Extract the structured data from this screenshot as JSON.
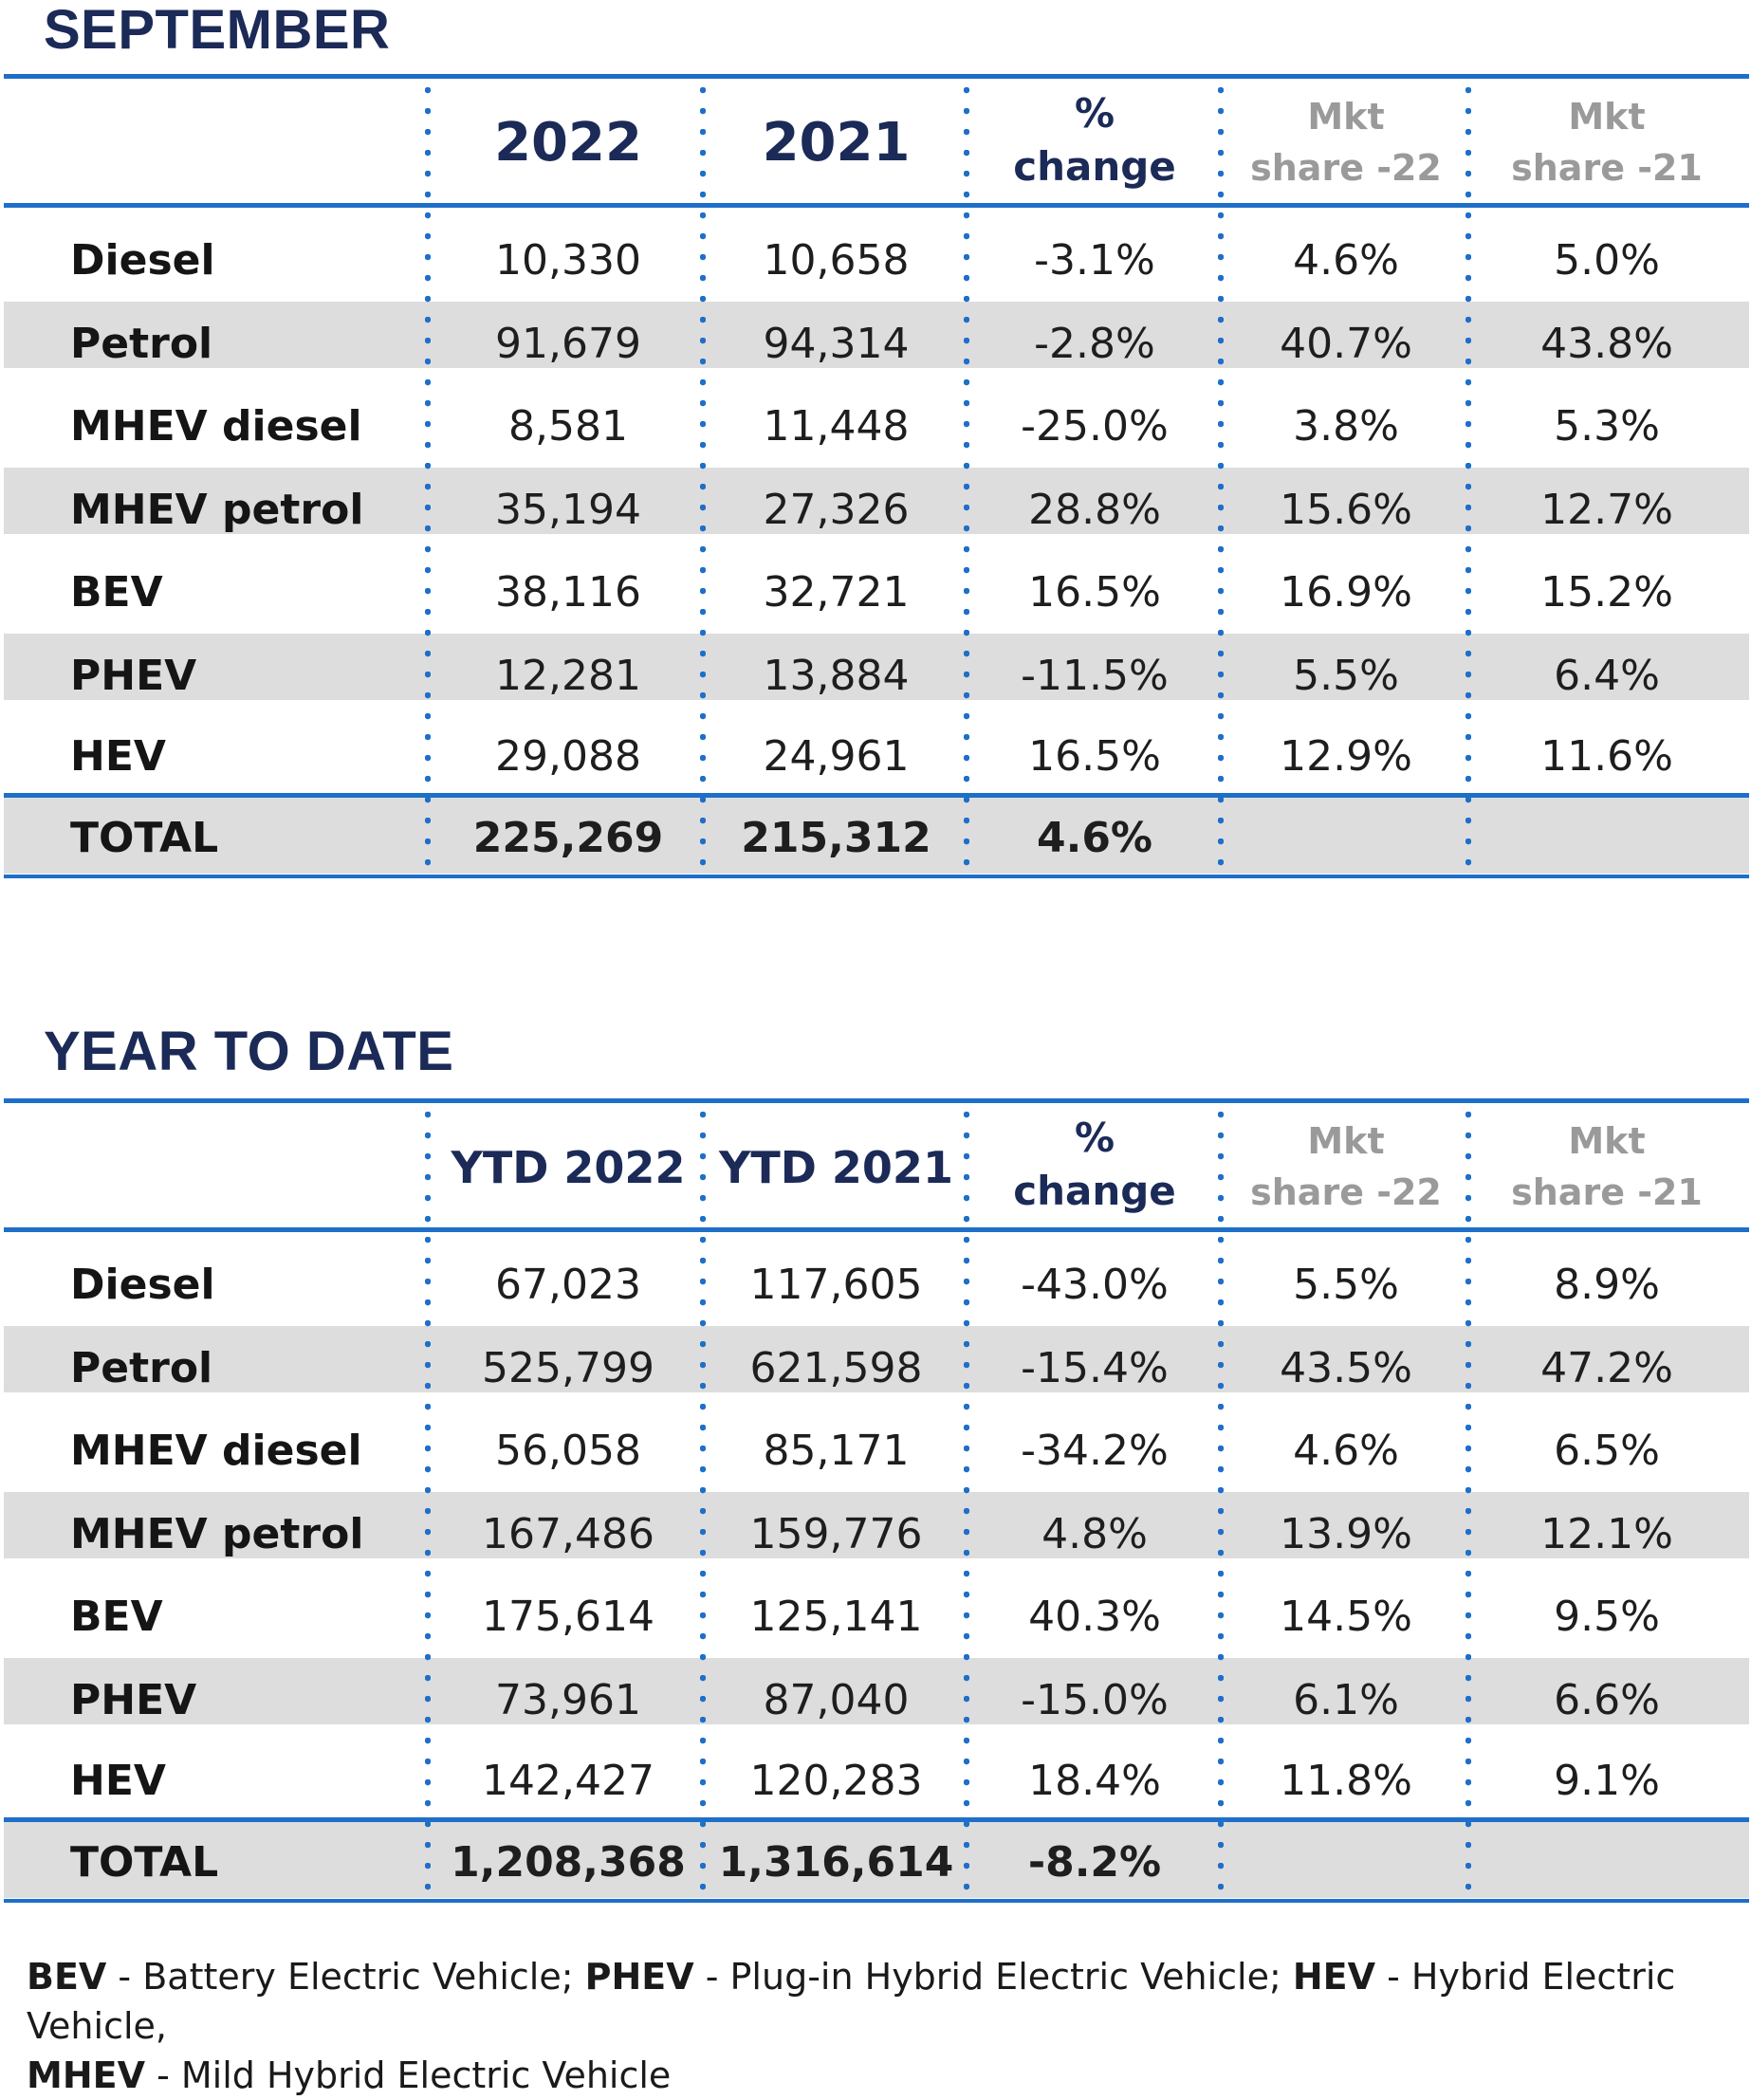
{
  "september": {
    "title": "SEPTEMBER",
    "headers": {
      "col1": "2022",
      "col2": "2021",
      "chg_line1": "%",
      "chg_line2": "change",
      "mkt22_line1": "Mkt",
      "mkt22_line2": "share -22",
      "mkt21_line1": "Mkt",
      "mkt21_line2": "share -21"
    },
    "rows": [
      {
        "label": "Diesel",
        "v2022": "10,330",
        "v2021": "10,658",
        "change": "-3.1%",
        "share22": "4.6%",
        "share21": "5.0%"
      },
      {
        "label": "Petrol",
        "v2022": "91,679",
        "v2021": "94,314",
        "change": "-2.8%",
        "share22": "40.7%",
        "share21": "43.8%"
      },
      {
        "label": "MHEV diesel",
        "v2022": "8,581",
        "v2021": "11,448",
        "change": "-25.0%",
        "share22": "3.8%",
        "share21": "5.3%"
      },
      {
        "label": "MHEV petrol",
        "v2022": "35,194",
        "v2021": "27,326",
        "change": "28.8%",
        "share22": "15.6%",
        "share21": "12.7%"
      },
      {
        "label": "BEV",
        "v2022": "38,116",
        "v2021": "32,721",
        "change": "16.5%",
        "share22": "16.9%",
        "share21": "15.2%"
      },
      {
        "label": "PHEV",
        "v2022": "12,281",
        "v2021": "13,884",
        "change": "-11.5%",
        "share22": "5.5%",
        "share21": "6.4%"
      },
      {
        "label": "HEV",
        "v2022": "29,088",
        "v2021": "24,961",
        "change": "16.5%",
        "share22": "12.9%",
        "share21": "11.6%"
      }
    ],
    "total": {
      "label": "TOTAL",
      "v2022": "225,269",
      "v2021": "215,312",
      "change": "4.6%"
    }
  },
  "ytd": {
    "title": "YEAR TO DATE",
    "headers": {
      "col1": "YTD 2022",
      "col2": "YTD 2021",
      "chg_line1": "%",
      "chg_line2": "change",
      "mkt22_line1": "Mkt",
      "mkt22_line2": "share -22",
      "mkt21_line1": "Mkt",
      "mkt21_line2": "share -21"
    },
    "rows": [
      {
        "label": "Diesel",
        "v2022": "67,023",
        "v2021": "117,605",
        "change": "-43.0%",
        "share22": "5.5%",
        "share21": "8.9%"
      },
      {
        "label": "Petrol",
        "v2022": "525,799",
        "v2021": "621,598",
        "change": "-15.4%",
        "share22": "43.5%",
        "share21": "47.2%"
      },
      {
        "label": "MHEV diesel",
        "v2022": "56,058",
        "v2021": "85,171",
        "change": "-34.2%",
        "share22": "4.6%",
        "share21": "6.5%"
      },
      {
        "label": "MHEV petrol",
        "v2022": "167,486",
        "v2021": "159,776",
        "change": "4.8%",
        "share22": "13.9%",
        "share21": "12.1%"
      },
      {
        "label": "BEV",
        "v2022": "175,614",
        "v2021": "125,141",
        "change": "40.3%",
        "share22": "14.5%",
        "share21": "9.5%"
      },
      {
        "label": "PHEV",
        "v2022": "73,961",
        "v2021": "87,040",
        "change": "-15.0%",
        "share22": "6.1%",
        "share21": "6.6%"
      },
      {
        "label": "HEV",
        "v2022": "142,427",
        "v2021": "120,283",
        "change": "18.4%",
        "share22": "11.8%",
        "share21": "9.1%"
      }
    ],
    "total": {
      "label": "TOTAL",
      "v2022": "1,208,368",
      "v2021": "1,316,614",
      "change": "-8.2%"
    }
  },
  "footnote": {
    "bev_abbr": "BEV",
    "bev_text": " - Battery Electric Vehicle; ",
    "phev_abbr": "PHEV",
    "phev_text": " - Plug-in Hybrid Electric Vehicle; ",
    "hev_abbr": "HEV",
    "hev_text": " - Hybrid Electric Vehicle,",
    "mhev_abbr": "MHEV",
    "mhev_text": " - Mild Hybrid Electric Vehicle"
  },
  "colors": {
    "accent": "#1e6fc9",
    "title": "#1b2a57",
    "band": "#dddddd",
    "mkt_header": "#9a9a9a"
  }
}
